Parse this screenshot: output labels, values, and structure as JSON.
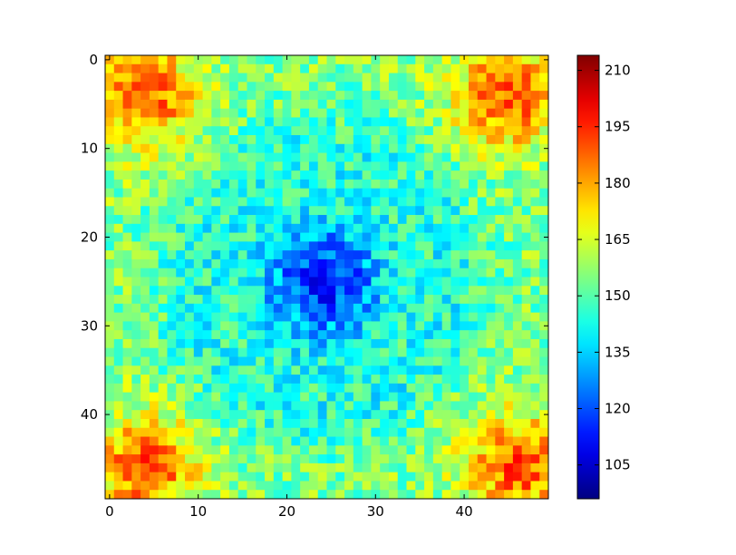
{
  "chart_data": {
    "type": "heatmap",
    "title": "",
    "xlabel": "",
    "ylabel": "",
    "grid_size": [
      50,
      50
    ],
    "xlim": [
      -0.5,
      49.5
    ],
    "ylim": [
      49.5,
      -0.5
    ],
    "x_ticks": [
      0,
      10,
      20,
      30,
      40
    ],
    "y_ticks": [
      0,
      10,
      20,
      30,
      40
    ],
    "colormap": "jet",
    "colorbar": {
      "vmin": 96,
      "vmax": 214,
      "ticks": [
        105,
        120,
        135,
        150,
        165,
        180,
        195,
        210
      ]
    },
    "field_model": {
      "base": 155,
      "center_low": {
        "x": 24,
        "y": 25,
        "value": 115
      },
      "corner_highs": [
        {
          "x": 4,
          "y": 4,
          "value": 190
        },
        {
          "x": 45,
          "y": 4,
          "value": 190
        },
        {
          "x": 4,
          "y": 46,
          "value": 190
        },
        {
          "x": 46,
          "y": 46,
          "value": 190
        }
      ],
      "ring_around_center": {
        "radius": 15,
        "value": 145
      },
      "noise_amplitude": 12
    }
  }
}
